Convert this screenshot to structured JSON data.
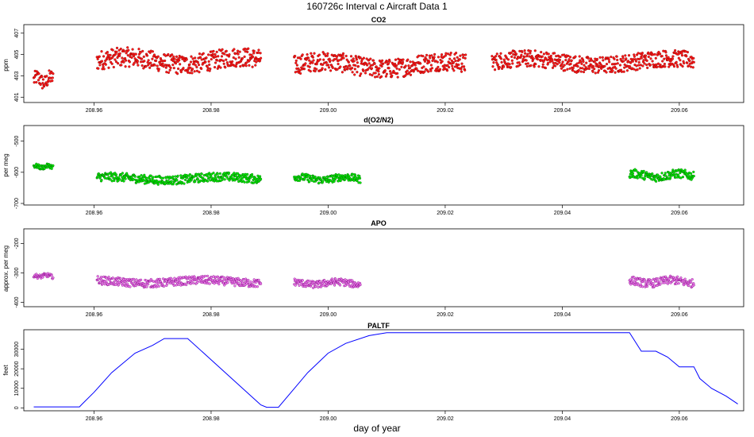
{
  "title": "160726c   Interval c Aircraft Data 1",
  "xlabel": "day of year",
  "chart_data": [
    {
      "type": "scatter",
      "title": "CO2",
      "ylabel": "ppm",
      "xlim": [
        208.948,
        209.071
      ],
      "ylim": [
        400.5,
        407.8
      ],
      "xticks": [
        "208.96",
        "208.98",
        "209.00",
        "209.02",
        "209.04",
        "209.06"
      ],
      "yticks": [
        "401",
        "403",
        "405",
        "407"
      ],
      "fill_color": "#ff1a1a",
      "stroke_color": "#8b0000",
      "segments": [
        {
          "x": [
            208.9497,
            208.953
          ],
          "y_center": 402.6,
          "y_spread": 0.7
        },
        {
          "x": [
            208.9605,
            208.9885
          ],
          "y_center": 404.4,
          "y_spread": 0.9
        },
        {
          "x": [
            208.9942,
            209.0235
          ],
          "y_center": 404.0,
          "y_spread": 0.9
        },
        {
          "x": [
            209.028,
            209.0625
          ],
          "y_center": 404.3,
          "y_spread": 0.8
        }
      ]
    },
    {
      "type": "scatter",
      "title": "d(O2/N2)",
      "ylabel": "per meg",
      "xlim": [
        208.948,
        209.071
      ],
      "ylim": [
        -705,
        -450
      ],
      "xticks": [
        "208.96",
        "208.98",
        "209.00",
        "209.02",
        "209.04",
        "209.06"
      ],
      "yticks": [
        "-700",
        "-600",
        "-500"
      ],
      "fill_color": "#00ee00",
      "stroke_color": "#006400",
      "segments": [
        {
          "x": [
            208.9497,
            208.953
          ],
          "y_center": -582,
          "y_spread": 7
        },
        {
          "x": [
            208.9605,
            208.9885
          ],
          "y_center": -620,
          "y_spread": 14
        },
        {
          "x": [
            208.9942,
            209.0055
          ],
          "y_center": -620,
          "y_spread": 12
        },
        {
          "x": [
            209.0515,
            209.0625
          ],
          "y_center": -610,
          "y_spread": 14
        }
      ]
    },
    {
      "type": "scatter",
      "title": "APO",
      "ylabel": "approx. per meg",
      "xlim": [
        208.948,
        209.071
      ],
      "ylim": [
        -415,
        -150
      ],
      "xticks": [
        "208.96",
        "208.98",
        "209.00",
        "209.02",
        "209.04",
        "209.06"
      ],
      "yticks": [
        "-400",
        "-300",
        "-200"
      ],
      "fill_color": "#ee82ee",
      "stroke_color": "#800080",
      "segments": [
        {
          "x": [
            208.9497,
            208.953
          ],
          "y_center": -310,
          "y_spread": 7
        },
        {
          "x": [
            208.9605,
            208.9885
          ],
          "y_center": -330,
          "y_spread": 14
        },
        {
          "x": [
            208.9942,
            209.0055
          ],
          "y_center": -335,
          "y_spread": 12
        },
        {
          "x": [
            209.0515,
            209.0625
          ],
          "y_center": -330,
          "y_spread": 14
        }
      ]
    },
    {
      "type": "line",
      "title": "PALTF",
      "ylabel": "feet",
      "xlim": [
        208.948,
        209.071
      ],
      "ylim": [
        -1500,
        40000
      ],
      "xticks": [
        "208.96",
        "208.98",
        "209.00",
        "209.02",
        "209.04",
        "209.06"
      ],
      "yticks": [
        "0",
        "10000",
        "20000",
        "30000"
      ],
      "color": "#0000ff",
      "x": [
        208.9497,
        208.9575,
        208.958,
        208.96,
        208.963,
        208.967,
        208.97,
        208.972,
        208.976,
        208.9885,
        208.9895,
        208.9915,
        208.9965,
        209.0,
        209.003,
        209.007,
        209.01,
        209.025,
        209.04,
        209.0515,
        209.0535,
        209.056,
        209.058,
        209.06,
        209.0625,
        209.0635,
        209.0655,
        209.068,
        209.07
      ],
      "y": [
        500,
        500,
        2000,
        8000,
        18000,
        28000,
        32000,
        35500,
        35500,
        1500,
        300,
        300,
        18000,
        28000,
        33000,
        37000,
        38500,
        38500,
        38500,
        38500,
        29000,
        29000,
        26000,
        21000,
        21000,
        15000,
        10000,
        6000,
        2000
      ]
    }
  ]
}
